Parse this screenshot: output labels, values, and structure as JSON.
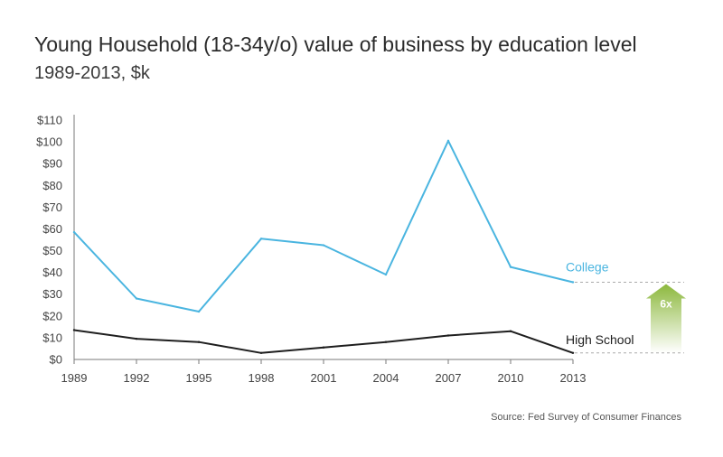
{
  "colors": {
    "college": "#4ab5e0",
    "high_school": "#1e1e1e",
    "axis": "#7a7a7a",
    "guide": "#aaaaaa",
    "arrow": "#8cb83d"
  },
  "chart_data": {
    "type": "line",
    "title": "Young Household (18-34y/o) value of business by education level",
    "subtitle": "1989-2013, $k",
    "source": "Source: Fed Survey of Consumer Finances",
    "x": [
      "1989",
      "1992",
      "1995",
      "1998",
      "2001",
      "2004",
      "2007",
      "2010",
      "2013"
    ],
    "ylim": [
      0,
      110
    ],
    "yticks": [
      0,
      10,
      20,
      30,
      40,
      50,
      60,
      70,
      80,
      90,
      100,
      110
    ],
    "ytick_labels": [
      "$0",
      "$10",
      "$20",
      "$30",
      "$40",
      "$50",
      "$60",
      "$70",
      "$80",
      "$90",
      "$100",
      "$110"
    ],
    "grid": false,
    "series": [
      {
        "name": "College",
        "values": [
          58.5,
          28,
          22,
          55.5,
          52.5,
          39,
          100.5,
          42.5,
          35.5
        ]
      },
      {
        "name": "High School",
        "values": [
          13.5,
          9.5,
          8,
          3,
          5.5,
          8,
          11,
          13,
          3
        ]
      }
    ],
    "annotation": {
      "label": "6x"
    }
  }
}
